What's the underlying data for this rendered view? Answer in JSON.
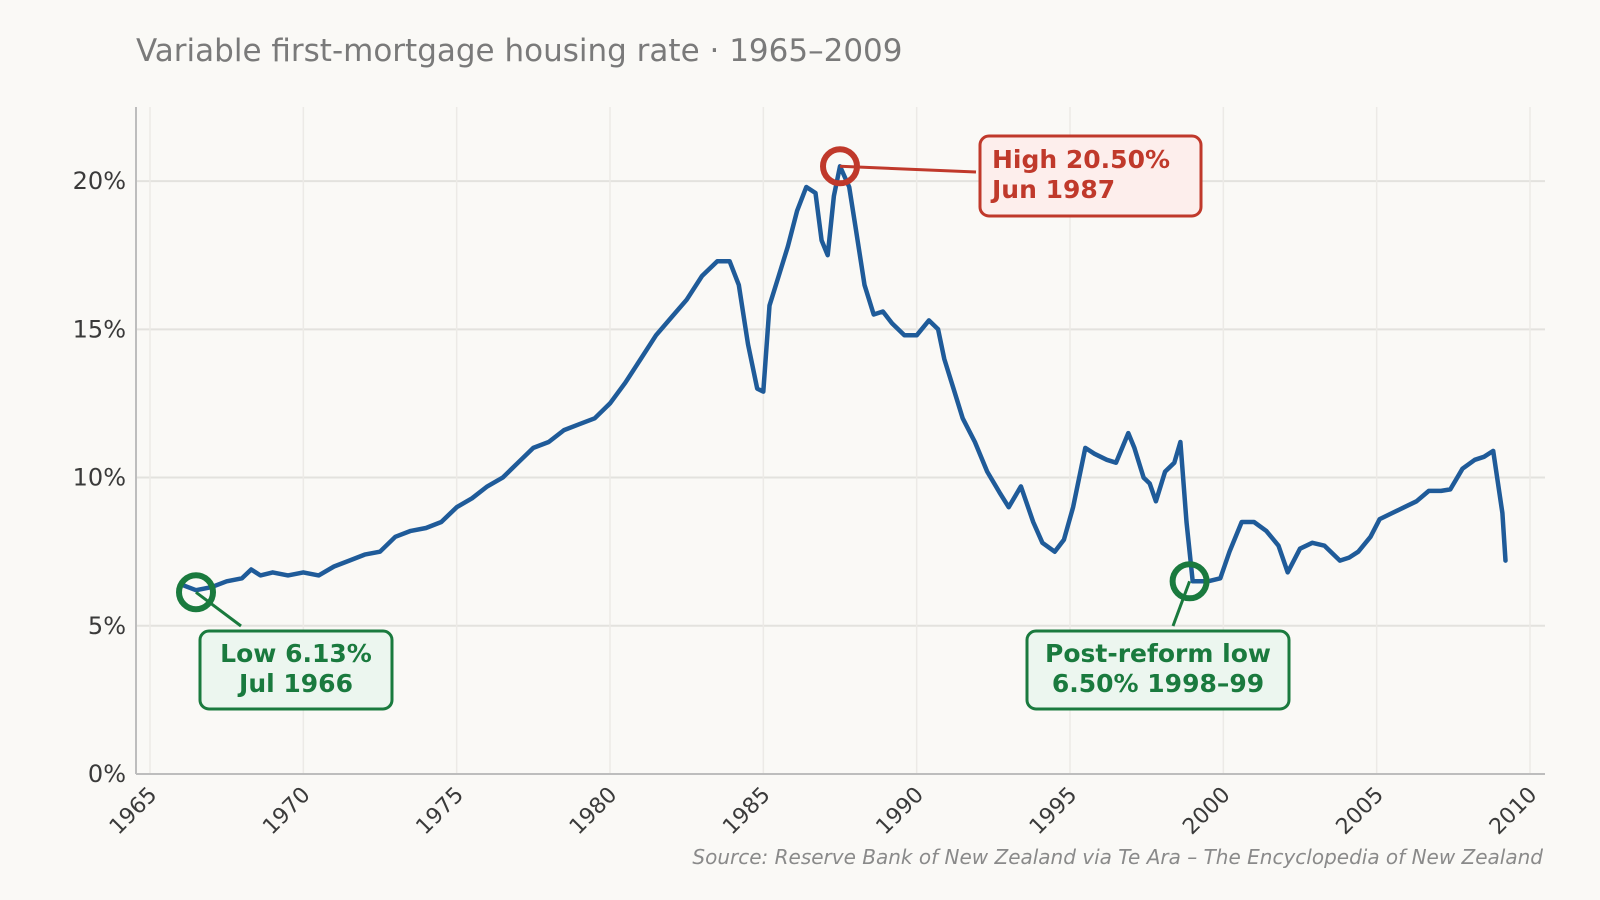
{
  "chart_data": {
    "type": "line",
    "title": "Variable first-mortgage housing rate · 1965–2009",
    "xlabel": "",
    "ylabel": "",
    "xlim": [
      1965,
      2010
    ],
    "ylim": [
      0,
      22.5
    ],
    "grid": true,
    "x_ticks": [
      1965,
      1970,
      1975,
      1980,
      1985,
      1990,
      1995,
      2000,
      2005,
      2010
    ],
    "y_ticks": [
      0,
      5,
      10,
      15,
      20
    ],
    "y_tick_labels": [
      "0%",
      "5%",
      "10%",
      "15%",
      "20%"
    ],
    "series": [
      {
        "color": "#1f5b99",
        "x": [
          1966.0,
          1966.5,
          1967.0,
          1967.5,
          1968.0,
          1968.3,
          1968.6,
          1969.0,
          1969.5,
          1970.0,
          1970.5,
          1971.0,
          1971.5,
          1972.0,
          1972.5,
          1973.0,
          1973.5,
          1974.0,
          1974.5,
          1975.0,
          1975.5,
          1976.0,
          1976.5,
          1977.0,
          1977.5,
          1978.0,
          1978.5,
          1979.0,
          1979.5,
          1980.0,
          1980.5,
          1981.0,
          1981.5,
          1982.0,
          1982.5,
          1983.0,
          1983.5,
          1983.9,
          1984.2,
          1984.5,
          1984.8,
          1985.0,
          1985.2,
          1985.5,
          1985.8,
          1986.1,
          1986.4,
          1986.7,
          1986.9,
          1987.1,
          1987.3,
          1987.5,
          1987.8,
          1988.0,
          1988.3,
          1988.6,
          1988.9,
          1989.2,
          1989.6,
          1990.0,
          1990.4,
          1990.7,
          1990.9,
          1991.2,
          1991.5,
          1991.9,
          1992.3,
          1992.7,
          1993.0,
          1993.4,
          1993.8,
          1994.1,
          1994.5,
          1994.8,
          1995.1,
          1995.5,
          1995.8,
          1996.2,
          1996.5,
          1996.9,
          1997.1,
          1997.4,
          1997.6,
          1997.8,
          1998.1,
          1998.4,
          1998.6,
          1998.8,
          1999.0,
          1999.5,
          1999.9,
          2000.2,
          2000.6,
          2001.0,
          2001.4,
          2001.8,
          2002.1,
          2002.5,
          2002.9,
          2003.3,
          2003.8,
          2004.1,
          2004.4,
          2004.8,
          2005.1,
          2005.5,
          2005.9,
          2006.3,
          2006.7,
          2007.1,
          2007.4,
          2007.8,
          2008.2,
          2008.5,
          2008.8,
          2009.1,
          2009.2
        ],
        "y": [
          6.4,
          6.2,
          6.3,
          6.5,
          6.6,
          6.9,
          6.7,
          6.8,
          6.7,
          6.8,
          6.7,
          7.0,
          7.2,
          7.4,
          7.5,
          8.0,
          8.2,
          8.3,
          8.5,
          9.0,
          9.3,
          9.7,
          10.0,
          10.5,
          11.0,
          11.2,
          11.6,
          11.8,
          12.0,
          12.5,
          13.2,
          14.0,
          14.8,
          15.4,
          16.0,
          16.8,
          17.3,
          17.3,
          16.5,
          14.5,
          13.0,
          12.9,
          15.8,
          16.8,
          17.8,
          19.0,
          19.8,
          19.6,
          18.0,
          17.5,
          19.5,
          20.5,
          19.8,
          18.5,
          16.5,
          15.5,
          15.6,
          15.2,
          14.8,
          14.8,
          15.3,
          15.0,
          14.0,
          13.0,
          12.0,
          11.2,
          10.2,
          9.5,
          9.0,
          9.7,
          8.5,
          7.8,
          7.5,
          7.9,
          9.0,
          11.0,
          10.8,
          10.6,
          10.5,
          11.5,
          11.0,
          10.0,
          9.8,
          9.2,
          10.2,
          10.5,
          11.2,
          8.5,
          6.5,
          6.5,
          6.6,
          7.5,
          8.5,
          8.5,
          8.2,
          7.7,
          6.8,
          7.6,
          7.8,
          7.7,
          7.2,
          7.3,
          7.5,
          8.0,
          8.6,
          8.8,
          9.0,
          9.2,
          9.55,
          9.55,
          9.6,
          10.3,
          10.6,
          10.7,
          10.9,
          8.8,
          7.2
        ]
      }
    ],
    "annotations": [
      {
        "kind": "high",
        "point_x": 1987.5,
        "point_y": 20.5,
        "line1": "High  20.50%",
        "line2": "Jun 1987",
        "color": "#c0392b",
        "fill": "#fdeeec"
      },
      {
        "kind": "low",
        "point_x": 1966.5,
        "point_y": 6.13,
        "line1": "Low  6.13%",
        "line2": "Jul 1966",
        "color": "#1a7a3e",
        "fill": "#ecf6ef"
      },
      {
        "kind": "post-reform",
        "point_x": 1998.9,
        "point_y": 6.5,
        "line1": "Post-reform low",
        "line2": "6.50%  1998–99",
        "color": "#1a7a3e",
        "fill": "#ecf6ef"
      }
    ],
    "source": "Source: Reserve Bank of New Zealand via Te Ara – The Encyclopedia of New Zealand"
  }
}
